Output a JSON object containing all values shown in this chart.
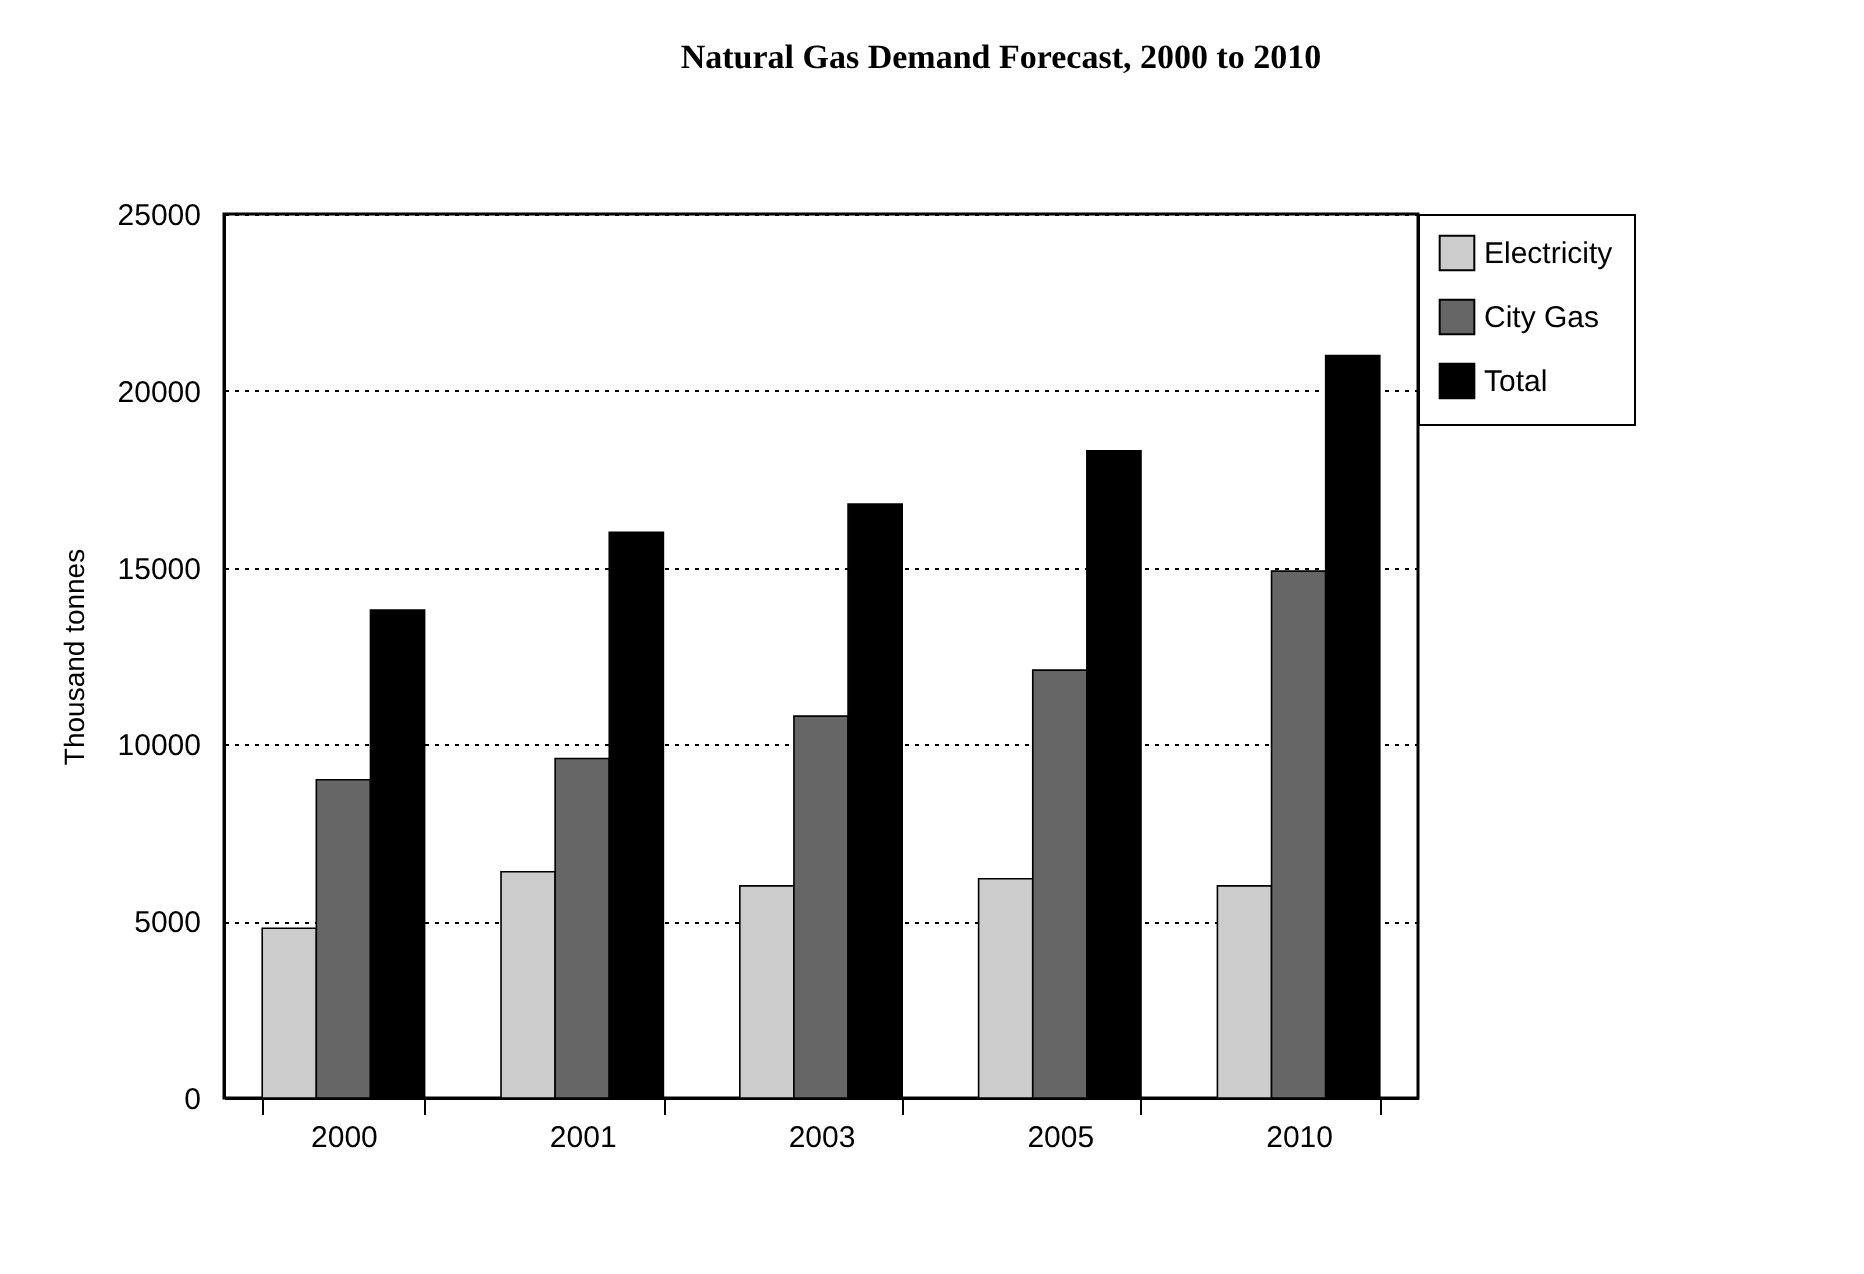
{
  "chart_data": {
    "type": "bar",
    "title": "Natural Gas Demand Forecast, 2000 to 2010",
    "ylabel": "Thousand tonnes",
    "categories": [
      "2000",
      "2001",
      "2003",
      "2005",
      "2010"
    ],
    "series": [
      {
        "name": "Electricity",
        "color": "#cccccc",
        "values": [
          4800,
          6400,
          6000,
          6200,
          6000
        ]
      },
      {
        "name": "City Gas",
        "color": "#666666",
        "values": [
          9000,
          9600,
          10800,
          12100,
          14900
        ]
      },
      {
        "name": "Total",
        "color": "#000000",
        "values": [
          13800,
          16000,
          16800,
          18300,
          21000
        ]
      }
    ],
    "ylim": [
      0,
      25000
    ],
    "yticks": [
      0,
      5000,
      10000,
      15000,
      20000,
      25000
    ],
    "grid": "y",
    "legend": "right"
  }
}
